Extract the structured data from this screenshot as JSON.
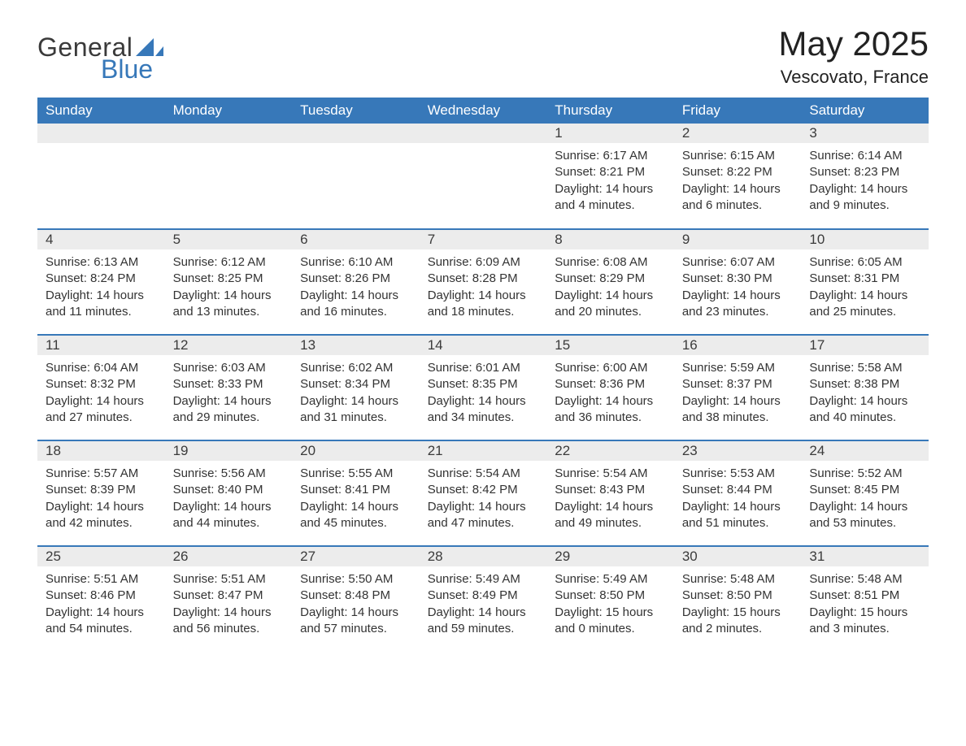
{
  "logo": {
    "word1": "General",
    "word2": "Blue",
    "accent_color": "#3778b9",
    "text_color": "#3a3a3a"
  },
  "title": "May 2025",
  "location": "Vescovato, France",
  "headers": [
    "Sunday",
    "Monday",
    "Tuesday",
    "Wednesday",
    "Thursday",
    "Friday",
    "Saturday"
  ],
  "labels": {
    "sunrise": "Sunrise:",
    "sunset": "Sunset:",
    "daylight": "Daylight:"
  },
  "colors": {
    "header_bg": "#3778b9",
    "header_text": "#ffffff",
    "daynum_bg": "#ececec",
    "row_border": "#3778b9",
    "body_text": "#333333"
  },
  "weeks": [
    [
      {
        "empty": true
      },
      {
        "empty": true
      },
      {
        "empty": true
      },
      {
        "empty": true
      },
      {
        "n": "1",
        "sunrise": "6:17 AM",
        "sunset": "8:21 PM",
        "daylight": "14 hours and 4 minutes."
      },
      {
        "n": "2",
        "sunrise": "6:15 AM",
        "sunset": "8:22 PM",
        "daylight": "14 hours and 6 minutes."
      },
      {
        "n": "3",
        "sunrise": "6:14 AM",
        "sunset": "8:23 PM",
        "daylight": "14 hours and 9 minutes."
      }
    ],
    [
      {
        "n": "4",
        "sunrise": "6:13 AM",
        "sunset": "8:24 PM",
        "daylight": "14 hours and 11 minutes."
      },
      {
        "n": "5",
        "sunrise": "6:12 AM",
        "sunset": "8:25 PM",
        "daylight": "14 hours and 13 minutes."
      },
      {
        "n": "6",
        "sunrise": "6:10 AM",
        "sunset": "8:26 PM",
        "daylight": "14 hours and 16 minutes."
      },
      {
        "n": "7",
        "sunrise": "6:09 AM",
        "sunset": "8:28 PM",
        "daylight": "14 hours and 18 minutes."
      },
      {
        "n": "8",
        "sunrise": "6:08 AM",
        "sunset": "8:29 PM",
        "daylight": "14 hours and 20 minutes."
      },
      {
        "n": "9",
        "sunrise": "6:07 AM",
        "sunset": "8:30 PM",
        "daylight": "14 hours and 23 minutes."
      },
      {
        "n": "10",
        "sunrise": "6:05 AM",
        "sunset": "8:31 PM",
        "daylight": "14 hours and 25 minutes."
      }
    ],
    [
      {
        "n": "11",
        "sunrise": "6:04 AM",
        "sunset": "8:32 PM",
        "daylight": "14 hours and 27 minutes."
      },
      {
        "n": "12",
        "sunrise": "6:03 AM",
        "sunset": "8:33 PM",
        "daylight": "14 hours and 29 minutes."
      },
      {
        "n": "13",
        "sunrise": "6:02 AM",
        "sunset": "8:34 PM",
        "daylight": "14 hours and 31 minutes."
      },
      {
        "n": "14",
        "sunrise": "6:01 AM",
        "sunset": "8:35 PM",
        "daylight": "14 hours and 34 minutes."
      },
      {
        "n": "15",
        "sunrise": "6:00 AM",
        "sunset": "8:36 PM",
        "daylight": "14 hours and 36 minutes."
      },
      {
        "n": "16",
        "sunrise": "5:59 AM",
        "sunset": "8:37 PM",
        "daylight": "14 hours and 38 minutes."
      },
      {
        "n": "17",
        "sunrise": "5:58 AM",
        "sunset": "8:38 PM",
        "daylight": "14 hours and 40 minutes."
      }
    ],
    [
      {
        "n": "18",
        "sunrise": "5:57 AM",
        "sunset": "8:39 PM",
        "daylight": "14 hours and 42 minutes."
      },
      {
        "n": "19",
        "sunrise": "5:56 AM",
        "sunset": "8:40 PM",
        "daylight": "14 hours and 44 minutes."
      },
      {
        "n": "20",
        "sunrise": "5:55 AM",
        "sunset": "8:41 PM",
        "daylight": "14 hours and 45 minutes."
      },
      {
        "n": "21",
        "sunrise": "5:54 AM",
        "sunset": "8:42 PM",
        "daylight": "14 hours and 47 minutes."
      },
      {
        "n": "22",
        "sunrise": "5:54 AM",
        "sunset": "8:43 PM",
        "daylight": "14 hours and 49 minutes."
      },
      {
        "n": "23",
        "sunrise": "5:53 AM",
        "sunset": "8:44 PM",
        "daylight": "14 hours and 51 minutes."
      },
      {
        "n": "24",
        "sunrise": "5:52 AM",
        "sunset": "8:45 PM",
        "daylight": "14 hours and 53 minutes."
      }
    ],
    [
      {
        "n": "25",
        "sunrise": "5:51 AM",
        "sunset": "8:46 PM",
        "daylight": "14 hours and 54 minutes."
      },
      {
        "n": "26",
        "sunrise": "5:51 AM",
        "sunset": "8:47 PM",
        "daylight": "14 hours and 56 minutes."
      },
      {
        "n": "27",
        "sunrise": "5:50 AM",
        "sunset": "8:48 PM",
        "daylight": "14 hours and 57 minutes."
      },
      {
        "n": "28",
        "sunrise": "5:49 AM",
        "sunset": "8:49 PM",
        "daylight": "14 hours and 59 minutes."
      },
      {
        "n": "29",
        "sunrise": "5:49 AM",
        "sunset": "8:50 PM",
        "daylight": "15 hours and 0 minutes."
      },
      {
        "n": "30",
        "sunrise": "5:48 AM",
        "sunset": "8:50 PM",
        "daylight": "15 hours and 2 minutes."
      },
      {
        "n": "31",
        "sunrise": "5:48 AM",
        "sunset": "8:51 PM",
        "daylight": "15 hours and 3 minutes."
      }
    ]
  ]
}
